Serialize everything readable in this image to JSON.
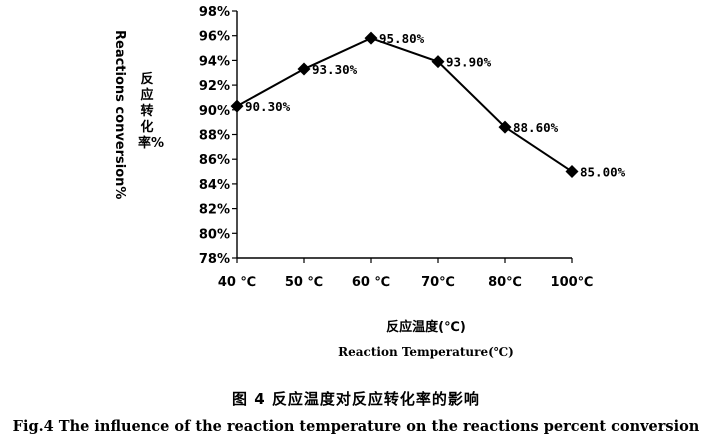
{
  "chart_data": {
    "type": "line",
    "categories": [
      "40 ℃",
      "50 ℃",
      "60 ℃",
      "70℃",
      "80℃",
      "100℃"
    ],
    "values": [
      90.3,
      93.3,
      95.8,
      93.9,
      88.6,
      85.0
    ],
    "data_labels": [
      "90.30%",
      "93.30%",
      "95.80%",
      "93.90%",
      "88.60%",
      "85.00%"
    ],
    "y_ticks": [
      "78%",
      "80%",
      "82%",
      "84%",
      "86%",
      "88%",
      "90%",
      "92%",
      "94%",
      "96%",
      "98%"
    ],
    "ylim": [
      78,
      98
    ],
    "ylabel_cn": "反应转化率%",
    "ylabel_en": "Reactions conversion%",
    "xlabel_cn": "反应温度(℃)",
    "xlabel_en": "Reaction Temperature(℃)",
    "marker": "diamond",
    "grid": false,
    "line_color": "#000000"
  },
  "caption": {
    "cn": "图 4   反应温度对反应转化率的影响",
    "en": "Fig.4   The influence of the reaction temperature on the reactions percent conversion"
  }
}
